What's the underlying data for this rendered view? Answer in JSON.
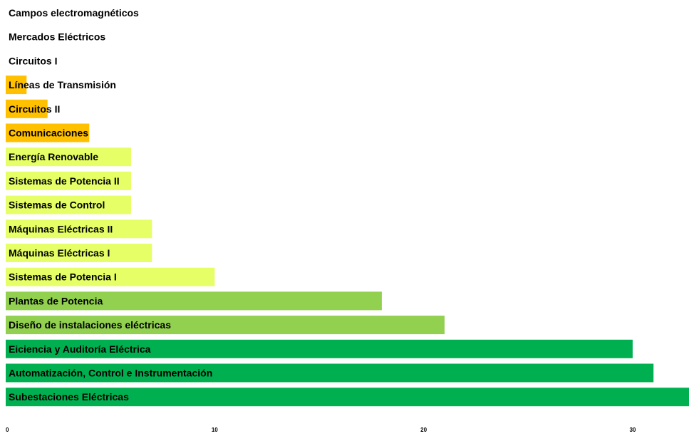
{
  "chart_data": {
    "type": "bar",
    "orientation": "horizontal",
    "categories": [
      "Campos electromagnéticos",
      "Mercados Eléctricos",
      "Circuitos I",
      "Líneas de Transmisión",
      "Circuitos II",
      "Comunicaciones",
      "Energía Renovable",
      "Sistemas de Potencia II",
      "Sistemas de Control",
      "Máquinas Eléctricas II",
      "Máquinas Eléctricas I",
      "Sistemas de Potencia I",
      "Plantas de Potencia",
      "Diseño de instalaciones eléctricas",
      "Eiciencia y Auditoría Eléctrica",
      "Automatización, Control e Instrumentación",
      "Subestaciones Eléctricas"
    ],
    "values": [
      0,
      0,
      0,
      1,
      2,
      4,
      6,
      6,
      6,
      7,
      7,
      10,
      18,
      21,
      30,
      31,
      33
    ],
    "colors": [
      "#ffc000",
      "#ffc000",
      "#ffc000",
      "#ffc000",
      "#ffc000",
      "#ffc000",
      "#e6ff66",
      "#e6ff66",
      "#e6ff66",
      "#e6ff66",
      "#e6ff66",
      "#e6ff66",
      "#92d050",
      "#92d050",
      "#00b050",
      "#00b050",
      "#00b050"
    ],
    "x_ticks": [
      0,
      10,
      20,
      30
    ],
    "xlim": [
      0,
      33
    ],
    "title": "",
    "xlabel": "",
    "ylabel": "",
    "grid": false,
    "legend": "none"
  }
}
